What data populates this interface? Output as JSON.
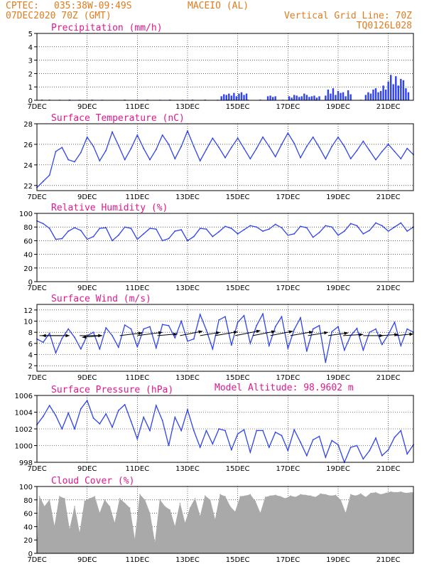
{
  "header": {
    "org": "CPTEC:",
    "coords": "035:38W-09:49S",
    "place": "MACEIO (AL)",
    "datetime": "07DEC2020 70Z (GMT)",
    "grid_note": "Vertical Grid Line: 70Z",
    "model_code": "TQ0126L028"
  },
  "colors": {
    "header": "#e07b1f",
    "title": "#e0188c",
    "series": "#2f43f2",
    "cloud": "#a9a9a9",
    "precip": "#2f43f2"
  },
  "x_axis": {
    "labels": [
      "7DEC",
      "9DEC",
      "11DEC",
      "13DEC",
      "15DEC",
      "17DEC",
      "19DEC",
      "21DEC"
    ],
    "days_total": 15
  },
  "model_altitude": "Model Altitude: 98.9602 m",
  "chart_data": [
    {
      "id": "precip",
      "type": "bar",
      "title": "Precipitation (mm/h)",
      "ylabel": "Precipitation (mm/h)",
      "ylim": [
        0,
        5
      ],
      "yticks": [
        0,
        1,
        2,
        3,
        4,
        5
      ],
      "x_unit": "days since 7DEC 00Z",
      "x": [
        0.2,
        0.5,
        0.9,
        1.3,
        1.7,
        2.2,
        2.6,
        3.0,
        3.5,
        4.0,
        4.4,
        4.9,
        5.3,
        5.8,
        6.2,
        6.7,
        7.2,
        7.6,
        8.0,
        8.4,
        8.9,
        9.3,
        9.8,
        10.2,
        10.7,
        11.1,
        11.6,
        12.0,
        12.5,
        12.9,
        13.4,
        13.8,
        14.3,
        14.7,
        7.35,
        7.45,
        7.55,
        7.65,
        7.75,
        7.85,
        7.95,
        8.05,
        8.15,
        8.25,
        8.35,
        9.2,
        9.3,
        9.4,
        9.5,
        10.05,
        10.15,
        10.25,
        10.35,
        10.45,
        10.55,
        10.65,
        10.75,
        10.85,
        10.95,
        11.05,
        11.15,
        11.25,
        11.5,
        11.6,
        11.7,
        11.8,
        11.9,
        12.0,
        12.1,
        12.2,
        12.3,
        12.4,
        12.5,
        13.1,
        13.2,
        13.3,
        13.4,
        13.5,
        13.6,
        13.7,
        13.8,
        13.9,
        14.0,
        14.1,
        14.2,
        14.3,
        14.4,
        14.5,
        14.6,
        14.7,
        14.8
      ],
      "values": [
        0.05,
        0.05,
        0.04,
        0.05,
        0.04,
        0.05,
        0.04,
        0.03,
        0.05,
        0.04,
        0.05,
        0.04,
        0.05,
        0.04,
        0.05,
        0.05,
        0.04,
        0.05,
        0.04,
        0.05,
        0.05,
        0.05,
        0.04,
        0.05,
        0.04,
        0.05,
        0.05,
        0.04,
        0.05,
        0.04,
        0.05,
        0.05,
        0.04,
        0.05,
        0.3,
        0.45,
        0.4,
        0.5,
        0.35,
        0.55,
        0.3,
        0.5,
        0.6,
        0.4,
        0.5,
        0.3,
        0.35,
        0.25,
        0.3,
        0.3,
        0.2,
        0.4,
        0.35,
        0.25,
        0.3,
        0.5,
        0.4,
        0.25,
        0.3,
        0.35,
        0.2,
        0.3,
        0.35,
        0.8,
        0.5,
        0.9,
        0.4,
        0.7,
        0.55,
        0.6,
        0.3,
        0.75,
        0.45,
        0.4,
        0.6,
        0.5,
        0.8,
        0.9,
        0.6,
        0.7,
        1.1,
        0.8,
        1.4,
        1.9,
        1.2,
        1.8,
        1.1,
        1.6,
        1.5,
        0.9,
        0.6
      ]
    },
    {
      "id": "temp",
      "type": "line",
      "title": "Surface Temperature (nC)",
      "ylabel": "Surface Temperature (nC)",
      "ylim": [
        21.5,
        28
      ],
      "yticks": [
        22,
        24,
        26,
        28
      ],
      "x_unit": "days since 7DEC 00Z",
      "series": [
        {
          "x": [
            0,
            0.25,
            0.5,
            0.75,
            1.0,
            1.25,
            1.5,
            1.75,
            2.0,
            2.25,
            2.5,
            2.75,
            3.0,
            3.25,
            3.5,
            3.75,
            4.0,
            4.25,
            4.5,
            4.75,
            5.0,
            5.25,
            5.5,
            5.75,
            6.0,
            6.25,
            6.5,
            6.75,
            7.0,
            7.25,
            7.5,
            7.75,
            8.0,
            8.25,
            8.5,
            8.75,
            9.0,
            9.25,
            9.5,
            9.75,
            10.0,
            10.25,
            10.5,
            10.75,
            11.0,
            11.25,
            11.5,
            11.75,
            12.0,
            12.25,
            12.5,
            12.75,
            13.0,
            13.25,
            13.5,
            13.75,
            14.0,
            14.25,
            14.5,
            14.75,
            15.0
          ],
          "values": [
            21.8,
            22.4,
            23.0,
            25.3,
            25.7,
            24.5,
            24.3,
            25.2,
            26.7,
            25.8,
            24.4,
            25.4,
            27.2,
            25.9,
            24.5,
            25.6,
            26.9,
            25.6,
            24.5,
            25.5,
            26.9,
            26.0,
            24.6,
            25.8,
            27.3,
            25.8,
            24.4,
            25.5,
            26.6,
            25.7,
            24.7,
            25.7,
            26.6,
            25.6,
            24.6,
            25.6,
            26.7,
            25.8,
            24.8,
            26.0,
            27.1,
            26.1,
            24.7,
            25.8,
            26.7,
            25.7,
            24.6,
            25.8,
            26.7,
            25.8,
            24.6,
            25.4,
            26.3,
            25.4,
            24.5,
            25.3,
            26.0,
            25.3,
            24.6,
            25.6,
            25.0
          ]
        }
      ]
    },
    {
      "id": "rh",
      "type": "line",
      "title": "Relative Humidity (%)",
      "ylabel": "Relative Humidity (%)",
      "ylim": [
        0,
        100
      ],
      "yticks": [
        0,
        20,
        40,
        60,
        80,
        100
      ],
      "x_unit": "days since 7DEC 00Z",
      "series": [
        {
          "x": [
            0,
            0.25,
            0.5,
            0.75,
            1.0,
            1.25,
            1.5,
            1.75,
            2.0,
            2.25,
            2.5,
            2.75,
            3.0,
            3.25,
            3.5,
            3.75,
            4.0,
            4.25,
            4.5,
            4.75,
            5.0,
            5.25,
            5.5,
            5.75,
            6.0,
            6.25,
            6.5,
            6.75,
            7.0,
            7.25,
            7.5,
            7.75,
            8.0,
            8.25,
            8.5,
            8.75,
            9.0,
            9.25,
            9.5,
            9.75,
            10.0,
            10.25,
            10.5,
            10.75,
            11.0,
            11.25,
            11.5,
            11.75,
            12.0,
            12.25,
            12.5,
            12.75,
            13.0,
            13.25,
            13.5,
            13.75,
            14.0,
            14.25,
            14.5,
            14.75,
            15.0
          ],
          "values": [
            89,
            85,
            78,
            62,
            63,
            74,
            79,
            75,
            62,
            66,
            78,
            79,
            60,
            68,
            80,
            78,
            62,
            70,
            78,
            77,
            60,
            63,
            74,
            76,
            60,
            66,
            78,
            77,
            66,
            73,
            81,
            78,
            70,
            76,
            82,
            80,
            74,
            77,
            84,
            79,
            68,
            70,
            81,
            79,
            65,
            72,
            82,
            80,
            68,
            74,
            85,
            82,
            70,
            75,
            86,
            82,
            74,
            80,
            86,
            74,
            80
          ]
        }
      ]
    },
    {
      "id": "wind",
      "type": "line",
      "title": "Surface Wind (m/s)",
      "ylabel": "Surface Wind (m/s)",
      "ylim": [
        1,
        13
      ],
      "yticks": [
        2,
        4,
        6,
        8,
        10,
        12
      ],
      "x_unit": "days since 7DEC 00Z",
      "series": [
        {
          "x": [
            0,
            0.25,
            0.5,
            0.75,
            1.0,
            1.25,
            1.5,
            1.75,
            2.0,
            2.25,
            2.5,
            2.75,
            3.0,
            3.25,
            3.5,
            3.75,
            4.0,
            4.25,
            4.5,
            4.75,
            5.0,
            5.25,
            5.5,
            5.75,
            6.0,
            6.25,
            6.5,
            6.75,
            7.0,
            7.25,
            7.5,
            7.75,
            8.0,
            8.25,
            8.5,
            8.75,
            9.0,
            9.25,
            9.5,
            9.75,
            10.0,
            10.25,
            10.5,
            10.75,
            11.0,
            11.25,
            11.5,
            11.75,
            12.0,
            12.25,
            12.5,
            12.75,
            13.0,
            13.25,
            13.5,
            13.75,
            14.0,
            14.25,
            14.5,
            14.75,
            15.0
          ],
          "values": [
            6.8,
            6.2,
            7.8,
            4.3,
            6.9,
            8.6,
            7.1,
            5.0,
            7.4,
            8.0,
            5.0,
            8.8,
            7.4,
            5.3,
            9.3,
            8.6,
            5.4,
            8.6,
            9.0,
            5.2,
            9.4,
            9.2,
            7.0,
            10.0,
            6.4,
            6.8,
            11.2,
            8.4,
            5.0,
            10.2,
            10.8,
            5.7,
            9.8,
            11.0,
            6.0,
            9.2,
            11.3,
            5.6,
            9.0,
            10.8,
            5.1,
            8.5,
            10.6,
            4.6,
            8.6,
            9.2,
            2.6,
            8.1,
            9.0,
            4.8,
            7.4,
            8.7,
            4.8,
            8.0,
            8.6,
            5.8,
            7.6,
            9.8,
            5.6,
            8.6,
            8.0
          ]
        }
      ],
      "arrows": [
        {
          "x": 0.1,
          "dx": 1.2,
          "dy": 0.0
        },
        {
          "x": 1.0,
          "dx": -0.8,
          "dy": 0.0
        },
        {
          "x": 1.7,
          "dx": 0.9,
          "dy": 0.0
        },
        {
          "x": 2.6,
          "dx": -0.8,
          "dy": -0.3
        },
        {
          "x": 3.3,
          "dx": 0.9,
          "dy": 0.5
        },
        {
          "x": 4.0,
          "dx": 1.0,
          "dy": 0.6
        },
        {
          "x": 4.8,
          "dx": 0.8,
          "dy": 0.3
        },
        {
          "x": 5.7,
          "dx": 0.9,
          "dy": 0.8
        },
        {
          "x": 6.5,
          "dx": 0.8,
          "dy": 0.6
        },
        {
          "x": 7.1,
          "dx": 0.9,
          "dy": 0.7
        },
        {
          "x": 7.9,
          "dx": 1.0,
          "dy": 0.9
        },
        {
          "x": 8.6,
          "dx": 0.9,
          "dy": 0.8
        },
        {
          "x": 9.3,
          "dx": 0.9,
          "dy": 0.8
        },
        {
          "x": 10.1,
          "dx": 0.9,
          "dy": 0.7
        },
        {
          "x": 10.8,
          "dx": 0.8,
          "dy": 0.6
        },
        {
          "x": 11.6,
          "dx": 0.8,
          "dy": 0.5
        },
        {
          "x": 12.2,
          "dx": 0.8,
          "dy": 0.2
        },
        {
          "x": 13.0,
          "dx": 0.8,
          "dy": 0.0
        },
        {
          "x": 13.7,
          "dx": 0.7,
          "dy": 0.2
        },
        {
          "x": 14.3,
          "dx": 0.7,
          "dy": 0.3
        }
      ]
    },
    {
      "id": "pressure",
      "type": "line",
      "title": "Surface Pressure (hPa)",
      "ylabel": "Surface Pressure (hPa)",
      "ylim": [
        998,
        1006
      ],
      "yticks": [
        998,
        1000,
        1002,
        1004,
        1006
      ],
      "x_unit": "days since 7DEC 00Z",
      "series": [
        {
          "x": [
            0,
            0.25,
            0.5,
            0.75,
            1.0,
            1.25,
            1.5,
            1.75,
            2.0,
            2.25,
            2.5,
            2.75,
            3.0,
            3.25,
            3.5,
            3.75,
            4.0,
            4.25,
            4.5,
            4.75,
            5.0,
            5.25,
            5.5,
            5.75,
            6.0,
            6.25,
            6.5,
            6.75,
            7.0,
            7.25,
            7.5,
            7.75,
            8.0,
            8.25,
            8.5,
            8.75,
            9.0,
            9.25,
            9.5,
            9.75,
            10.0,
            10.25,
            10.5,
            10.75,
            11.0,
            11.25,
            11.5,
            11.75,
            12.0,
            12.25,
            12.5,
            12.75,
            13.0,
            13.25,
            13.5,
            13.75,
            14.0,
            14.25,
            14.5,
            14.75,
            15.0
          ],
          "values": [
            1002.5,
            1003.5,
            1004.8,
            1003.6,
            1002.0,
            1003.9,
            1002.0,
            1004.4,
            1005.4,
            1003.3,
            1002.6,
            1003.8,
            1002.2,
            1004.2,
            1004.9,
            1002.9,
            1000.8,
            1003.4,
            1001.8,
            1004.8,
            1003.0,
            1000.0,
            1003.4,
            1001.8,
            1004.3,
            1001.8,
            999.8,
            1001.8,
            1000.2,
            1002.0,
            1001.8,
            999.5,
            1001.4,
            1001.9,
            999.2,
            1001.8,
            1001.8,
            999.8,
            1001.6,
            1001.2,
            999.4,
            1001.9,
            1000.4,
            998.8,
            1000.7,
            1001.1,
            998.6,
            1000.6,
            1000.1,
            998.0,
            999.8,
            1000.0,
            998.4,
            999.4,
            1000.9,
            998.8,
            999.5,
            1001.0,
            1001.8,
            999.0,
            1000.1
          ]
        }
      ]
    },
    {
      "id": "cloud",
      "type": "area",
      "title": "Cloud Cover (%)",
      "ylabel": "Cloud Cover (%)",
      "ylim": [
        0,
        100
      ],
      "yticks": [
        0,
        20,
        40,
        60,
        80,
        100
      ],
      "x_unit": "days since 7DEC 00Z",
      "series": [
        {
          "x": [
            0.1,
            0.3,
            0.5,
            0.7,
            0.9,
            1.1,
            1.3,
            1.5,
            1.7,
            1.9,
            2.1,
            2.3,
            2.5,
            2.7,
            2.9,
            3.1,
            3.3,
            3.5,
            3.7,
            3.9,
            4.1,
            4.3,
            4.5,
            4.7,
            4.9,
            5.1,
            5.3,
            5.5,
            5.7,
            5.9,
            6.1,
            6.3,
            6.5,
            6.7,
            6.9,
            7.1,
            7.3,
            7.5,
            7.7,
            7.9,
            8.1,
            8.3,
            8.5,
            8.7,
            8.9,
            9.1,
            9.3,
            9.5,
            9.7,
            9.9,
            10.1,
            10.3,
            10.5,
            10.7,
            10.9,
            11.1,
            11.3,
            11.5,
            11.7,
            11.9,
            12.1,
            12.3,
            12.5,
            12.7,
            12.9,
            13.1,
            13.3,
            13.5,
            13.7,
            13.9,
            14.1,
            14.3,
            14.5,
            14.7,
            14.9
          ],
          "values": [
            85,
            70,
            80,
            40,
            85,
            82,
            35,
            70,
            30,
            78,
            82,
            85,
            60,
            80,
            70,
            45,
            82,
            75,
            68,
            20,
            88,
            80,
            60,
            15,
            80,
            70,
            65,
            40,
            75,
            45,
            68,
            82,
            55,
            86,
            80,
            50,
            88,
            85,
            70,
            62,
            85,
            86,
            88,
            78,
            60,
            84,
            86,
            87,
            85,
            82,
            86,
            84,
            88,
            87,
            86,
            84,
            89,
            88,
            86,
            87,
            80,
            60,
            88,
            86,
            89,
            84,
            90,
            91,
            88,
            90,
            92,
            91,
            92,
            90,
            91
          ]
        }
      ]
    }
  ]
}
